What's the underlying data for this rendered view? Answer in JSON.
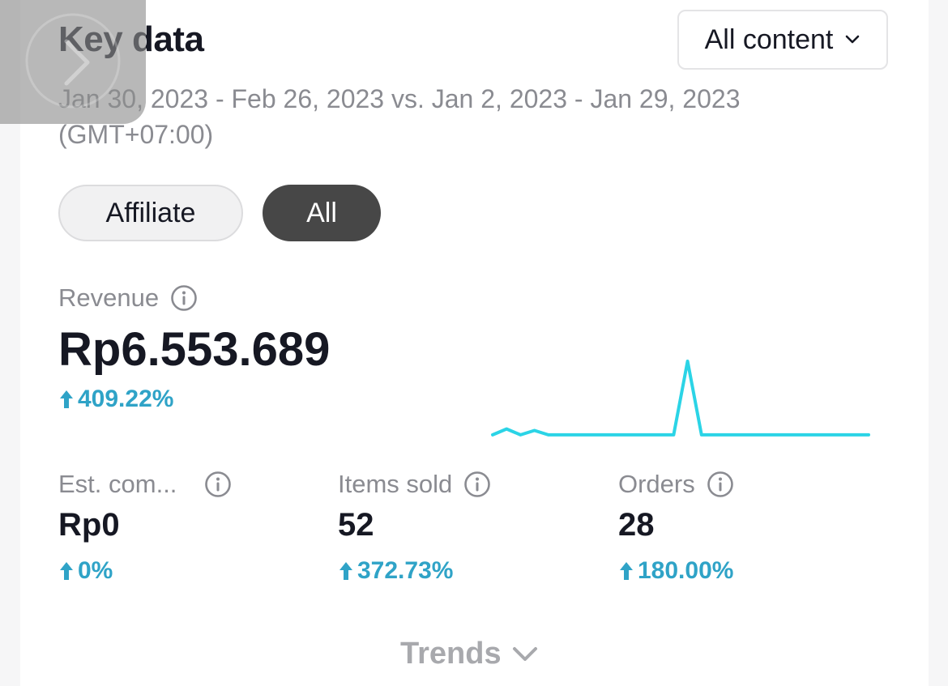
{
  "header": {
    "title": "Key data",
    "content_filter": "All content"
  },
  "date_range": "Jan 30, 2023 - Feb 26, 2023 vs. Jan 2, 2023 - Jan 29, 2023 (GMT+07:00)",
  "filters": {
    "affiliate_label": "Affiliate",
    "all_label": "All",
    "selected": "All"
  },
  "revenue": {
    "label": "Revenue",
    "value": "Rp6.553.689",
    "change": "409.22%"
  },
  "metrics": [
    {
      "label": "Est. com...",
      "value": "Rp0",
      "change": "0%"
    },
    {
      "label": "Items sold",
      "value": "52",
      "change": "372.73%"
    },
    {
      "label": "Orders",
      "value": "28",
      "change": "180.00%"
    }
  ],
  "trends_label": "Trends",
  "colors": {
    "accent": "#2fa3c7",
    "sparkline": "#2bd4e6",
    "pill_selected": "#474747"
  },
  "icons": {
    "info": "info-icon",
    "up_arrow": "arrow-up-icon",
    "chevron": "chevron-down-icon",
    "overlay": "chevron-right-icon"
  },
  "chart_data": {
    "type": "line",
    "series": [
      {
        "values": [
          1,
          1.8,
          1,
          1.6,
          1,
          1,
          1,
          1,
          1,
          1,
          1,
          1,
          1,
          1,
          11,
          1,
          1,
          1,
          1,
          1,
          1,
          1,
          1,
          1,
          1,
          1,
          1,
          1
        ]
      }
    ],
    "grid": false,
    "legend": "none"
  }
}
